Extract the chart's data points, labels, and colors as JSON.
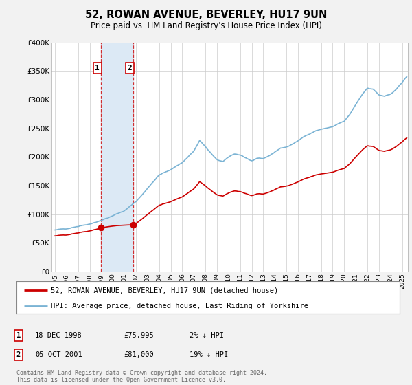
{
  "title": "52, ROWAN AVENUE, BEVERLEY, HU17 9UN",
  "subtitle": "Price paid vs. HM Land Registry's House Price Index (HPI)",
  "background_color": "#f2f2f2",
  "plot_bg_color": "#ffffff",
  "sale_labels": [
    "1",
    "2"
  ],
  "sale_info_1_label": "1",
  "sale_info_1_date": "18-DEC-1998",
  "sale_info_1_price": "£75,995",
  "sale_info_1_hpi": "2% ↓ HPI",
  "sale_info_2_label": "2",
  "sale_info_2_date": "05-OCT-2001",
  "sale_info_2_price": "£81,000",
  "sale_info_2_hpi": "19% ↓ HPI",
  "legend_line1": "52, ROWAN AVENUE, BEVERLEY, HU17 9UN (detached house)",
  "legend_line2": "HPI: Average price, detached house, East Riding of Yorkshire",
  "footer": "Contains HM Land Registry data © Crown copyright and database right 2024.\nThis data is licensed under the Open Government Licence v3.0.",
  "red_color": "#cc0000",
  "blue_color": "#7ab3d4",
  "shade_color": "#dce9f5",
  "ylim": [
    0,
    400000
  ],
  "yticks": [
    0,
    50000,
    100000,
    150000,
    200000,
    250000,
    300000,
    350000,
    400000
  ],
  "ylabel_fmt": [
    "£0",
    "£50K",
    "£100K",
    "£150K",
    "£200K",
    "£250K",
    "£300K",
    "£350K",
    "£400K"
  ],
  "sale1_x": 1998.96,
  "sale1_y": 75995,
  "sale2_x": 2001.75,
  "sale2_y": 81000,
  "xmin": 1995.0,
  "xmax": 2025.5
}
